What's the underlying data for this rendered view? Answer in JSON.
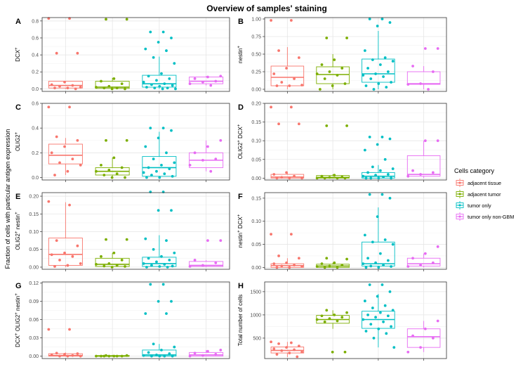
{
  "figure": {
    "title": "Overview of samples' staining",
    "shared_ylabel": "Fraction of cells with particular antigen expression",
    "legend_title": "Cells category",
    "legend_position": "right"
  },
  "chart_data": [
    {
      "id": "A",
      "type": "box",
      "ylabel_main": "DCX",
      "ylabel_sup": "+",
      "ylim": [
        -0.03,
        0.84
      ],
      "ticks": [
        0.0,
        0.2,
        0.4,
        0.6,
        0.8
      ],
      "tick_decimals": 1,
      "categories": [
        "adjacent tissue",
        "adjacent tumor",
        "tumor only",
        "tumor only non-GBM"
      ],
      "boxes": [
        {
          "q1": 0.01,
          "median": 0.04,
          "q3": 0.09,
          "wlow": 0.0,
          "whigh": 0.09
        },
        {
          "q1": 0.005,
          "median": 0.02,
          "q3": 0.09,
          "wlow": 0.0,
          "whigh": 0.13
        },
        {
          "q1": 0.02,
          "median": 0.06,
          "q3": 0.16,
          "wlow": 0.0,
          "whigh": 0.38
        },
        {
          "q1": 0.06,
          "median": 0.09,
          "q3": 0.14,
          "wlow": 0.04,
          "whigh": 0.15
        }
      ],
      "points": [
        [
          0.83,
          0.83,
          0.42,
          0.42,
          0.08,
          0.05,
          0.04,
          0.03,
          0.02,
          0.01,
          0.01,
          0.0
        ],
        [
          0.82,
          0.82,
          0.12,
          0.09,
          0.06,
          0.03,
          0.02,
          0.01,
          0.01,
          0.0,
          0.0
        ],
        [
          0.67,
          0.67,
          0.6,
          0.55,
          0.47,
          0.45,
          0.37,
          0.3,
          0.18,
          0.15,
          0.12,
          0.1,
          0.08,
          0.06,
          0.05,
          0.04,
          0.03,
          0.02,
          0.01,
          0.01,
          0.0,
          0.0
        ],
        [
          0.15,
          0.14,
          0.12,
          0.09,
          0.08,
          0.06,
          0.04
        ]
      ]
    },
    {
      "id": "B",
      "type": "box",
      "ylabel_main": "nestin",
      "ylabel_sup": "+",
      "ylim": [
        -0.03,
        1.02
      ],
      "ticks": [
        0.0,
        0.25,
        0.5,
        0.75,
        1.0
      ],
      "tick_decimals": 2,
      "categories": [
        "adjacent tissue",
        "adjacent tumor",
        "tumor only",
        "tumor only non-GBM"
      ],
      "boxes": [
        {
          "q1": 0.05,
          "median": 0.17,
          "q3": 0.33,
          "wlow": 0.0,
          "whigh": 0.6
        },
        {
          "q1": 0.08,
          "median": 0.21,
          "q3": 0.32,
          "wlow": 0.0,
          "whigh": 0.5
        },
        {
          "q1": 0.1,
          "median": 0.22,
          "q3": 0.43,
          "wlow": 0.0,
          "whigh": 0.83
        },
        {
          "q1": 0.07,
          "median": 0.08,
          "q3": 0.25,
          "wlow": 0.0,
          "whigh": 0.33
        }
      ],
      "points": [
        [
          0.98,
          0.98,
          0.55,
          0.45,
          0.3,
          0.22,
          0.15,
          0.1,
          0.06,
          0.05,
          0.05
        ],
        [
          0.73,
          0.73,
          0.42,
          0.35,
          0.3,
          0.25,
          0.22,
          0.2,
          0.15,
          0.08,
          0.05,
          0.0
        ],
        [
          1.0,
          1.0,
          0.95,
          0.9,
          0.55,
          0.45,
          0.42,
          0.4,
          0.35,
          0.3,
          0.25,
          0.22,
          0.2,
          0.18,
          0.15,
          0.1,
          0.08,
          0.05,
          0.03,
          0.0
        ],
        [
          0.58,
          0.58,
          0.33,
          0.25,
          0.08,
          0.07,
          0.0
        ]
      ]
    },
    {
      "id": "C",
      "type": "box",
      "ylabel_main": "OLIG2",
      "ylabel_sup": "+",
      "ylim": [
        -0.02,
        0.6
      ],
      "ticks": [
        0.0,
        0.2,
        0.4,
        0.6
      ],
      "tick_decimals": 1,
      "categories": [
        "adjacent tissue",
        "adjacent tumor",
        "tumor only",
        "tumor only non-GBM"
      ],
      "boxes": [
        {
          "q1": 0.11,
          "median": 0.18,
          "q3": 0.27,
          "wlow": 0.02,
          "whigh": 0.32
        },
        {
          "q1": 0.02,
          "median": 0.05,
          "q3": 0.08,
          "wlow": 0.0,
          "whigh": 0.16
        },
        {
          "q1": 0.01,
          "median": 0.08,
          "q3": 0.17,
          "wlow": 0.0,
          "whigh": 0.37
        },
        {
          "q1": 0.08,
          "median": 0.14,
          "q3": 0.2,
          "wlow": 0.05,
          "whigh": 0.3
        }
      ],
      "points": [
        [
          0.57,
          0.57,
          0.33,
          0.3,
          0.25,
          0.2,
          0.15,
          0.12,
          0.1,
          0.05,
          0.02
        ],
        [
          0.3,
          0.3,
          0.16,
          0.1,
          0.08,
          0.06,
          0.05,
          0.03,
          0.02,
          0.0,
          0.0
        ],
        [
          0.4,
          0.4,
          0.38,
          0.32,
          0.25,
          0.2,
          0.15,
          0.12,
          0.1,
          0.08,
          0.07,
          0.05,
          0.04,
          0.03,
          0.02,
          0.01,
          0.0,
          0.0
        ],
        [
          0.3,
          0.25,
          0.2,
          0.15,
          0.14,
          0.1,
          0.05
        ]
      ]
    },
    {
      "id": "D",
      "type": "box",
      "ylabel_main": "OLIG2",
      "ylabel_sup": "+",
      "ylabel_main2": " DCX",
      "ylabel_sup2": "+",
      "ylim": [
        -0.005,
        0.2
      ],
      "ticks": [
        0.0,
        0.05,
        0.1,
        0.15,
        0.2
      ],
      "tick_decimals": 2,
      "categories": [
        "adjacent tissue",
        "adjacent tumor",
        "tumor only",
        "tumor only non-GBM"
      ],
      "boxes": [
        {
          "q1": 0.0,
          "median": 0.003,
          "q3": 0.01,
          "wlow": 0.0,
          "whigh": 0.015
        },
        {
          "q1": 0.0,
          "median": 0.002,
          "q3": 0.007,
          "wlow": 0.0,
          "whigh": 0.01
        },
        {
          "q1": 0.0,
          "median": 0.005,
          "q3": 0.015,
          "wlow": 0.0,
          "whigh": 0.035
        },
        {
          "q1": 0.005,
          "median": 0.01,
          "q3": 0.06,
          "wlow": 0.0,
          "whigh": 0.1
        }
      ],
      "points": [
        [
          0.19,
          0.19,
          0.145,
          0.145,
          0.015,
          0.01,
          0.005,
          0.002,
          0.0,
          0.0,
          0.0
        ],
        [
          0.14,
          0.14,
          0.008,
          0.005,
          0.003,
          0.002,
          0.0,
          0.0,
          0.0,
          0.0
        ],
        [
          0.11,
          0.11,
          0.105,
          0.09,
          0.075,
          0.05,
          0.03,
          0.025,
          0.02,
          0.015,
          0.01,
          0.008,
          0.005,
          0.003,
          0.0,
          0.0,
          0.0,
          0.0
        ],
        [
          0.1,
          0.1,
          0.02,
          0.015,
          0.01,
          0.005
        ]
      ]
    },
    {
      "id": "E",
      "type": "box",
      "ylabel_main": "OLIG2",
      "ylabel_sup": "+",
      "ylabel_main2": " nestin",
      "ylabel_sup2": "+",
      "ylim": [
        -0.006,
        0.21
      ],
      "ticks": [
        0.0,
        0.05,
        0.1,
        0.15,
        0.2
      ],
      "tick_decimals": 2,
      "categories": [
        "adjacent tissue",
        "adjacent tumor",
        "tumor only",
        "tumor only non-GBM"
      ],
      "boxes": [
        {
          "q1": 0.005,
          "median": 0.036,
          "q3": 0.082,
          "wlow": 0.0,
          "whigh": 0.183
        },
        {
          "q1": 0.002,
          "median": 0.008,
          "q3": 0.025,
          "wlow": 0.0,
          "whigh": 0.04
        },
        {
          "q1": 0.002,
          "median": 0.01,
          "q3": 0.028,
          "wlow": 0.0,
          "whigh": 0.09
        },
        {
          "q1": 0.002,
          "median": 0.005,
          "q3": 0.016,
          "wlow": 0.0,
          "whigh": 0.02
        }
      ],
      "points": [
        [
          0.185,
          0.175,
          0.075,
          0.06,
          0.04,
          0.035,
          0.03,
          0.02,
          0.01,
          0.005,
          0.002
        ],
        [
          0.078,
          0.078,
          0.04,
          0.03,
          0.02,
          0.01,
          0.008,
          0.005,
          0.003,
          0.002,
          0.0
        ],
        [
          0.212,
          0.212,
          0.16,
          0.16,
          0.08,
          0.075,
          0.05,
          0.04,
          0.03,
          0.025,
          0.02,
          0.015,
          0.01,
          0.008,
          0.005,
          0.003,
          0.002,
          0.0,
          0.0
        ],
        [
          0.075,
          0.075,
          0.02,
          0.012,
          0.005,
          0.002
        ]
      ]
    },
    {
      "id": "F",
      "type": "box",
      "ylabel_main": "nestin",
      "ylabel_sup": "+",
      "ylabel_main2": " DCX",
      "ylabel_sup2": "+",
      "ylim": [
        -0.004,
        0.162
      ],
      "ticks": [
        0.0,
        0.05,
        0.1,
        0.15
      ],
      "tick_decimals": 2,
      "categories": [
        "adjacent tissue",
        "adjacent tumor",
        "tumor only",
        "tumor only non-GBM"
      ],
      "boxes": [
        {
          "q1": 0.0,
          "median": 0.004,
          "q3": 0.008,
          "wlow": 0.0,
          "whigh": 0.02
        },
        {
          "q1": 0.0,
          "median": 0.003,
          "q3": 0.007,
          "wlow": 0.0,
          "whigh": 0.01
        },
        {
          "q1": 0.003,
          "median": 0.008,
          "q3": 0.055,
          "wlow": 0.0,
          "whigh": 0.13
        },
        {
          "q1": 0.003,
          "median": 0.008,
          "q3": 0.02,
          "wlow": 0.0,
          "whigh": 0.03
        }
      ],
      "points": [
        [
          0.072,
          0.072,
          0.025,
          0.02,
          0.01,
          0.008,
          0.005,
          0.003,
          0.002,
          0.0,
          0.0
        ],
        [
          0.02,
          0.018,
          0.01,
          0.008,
          0.005,
          0.003,
          0.002,
          0.0,
          0.0
        ],
        [
          0.158,
          0.158,
          0.15,
          0.11,
          0.07,
          0.06,
          0.055,
          0.05,
          0.03,
          0.02,
          0.015,
          0.01,
          0.008,
          0.005,
          0.003,
          0.002,
          0.0,
          0.0
        ],
        [
          0.045,
          0.03,
          0.02,
          0.01,
          0.005,
          0.002
        ]
      ]
    },
    {
      "id": "G",
      "type": "box",
      "ylabel_main": "DCX",
      "ylabel_sup": "+",
      "ylabel_main2": " OLIG2",
      "ylabel_sup2": "+",
      "ylabel_main3": " nestin",
      "ylabel_sup3": "+",
      "ylim": [
        -0.004,
        0.122
      ],
      "ticks": [
        0.0,
        0.03,
        0.06,
        0.09,
        0.12
      ],
      "tick_decimals": 2,
      "categories": [
        "adjacent tissue",
        "adjacent tumor",
        "tumor only",
        "tumor only non-GBM"
      ],
      "boxes": [
        {
          "q1": 0.0,
          "median": 0.001,
          "q3": 0.004,
          "wlow": 0.0,
          "whigh": 0.006
        },
        {
          "q1": 0.0,
          "median": 0.0,
          "q3": 0.001,
          "wlow": 0.0,
          "whigh": 0.002
        },
        {
          "q1": 0.0,
          "median": 0.002,
          "q3": 0.01,
          "wlow": 0.0,
          "whigh": 0.02
        },
        {
          "q1": 0.0,
          "median": 0.002,
          "q3": 0.006,
          "wlow": 0.0,
          "whigh": 0.01
        }
      ],
      "points": [
        [
          0.044,
          0.044,
          0.005,
          0.004,
          0.003,
          0.002,
          0.001,
          0.0,
          0.0,
          0.0
        ],
        [
          0.001,
          0.001,
          0.0,
          0.0,
          0.0,
          0.0,
          0.0,
          0.0,
          0.0
        ],
        [
          0.118,
          0.118,
          0.09,
          0.09,
          0.07,
          0.07,
          0.02,
          0.015,
          0.01,
          0.006,
          0.004,
          0.002,
          0.001,
          0.0,
          0.0,
          0.0,
          0.0
        ],
        [
          0.01,
          0.008,
          0.005,
          0.003,
          0.001,
          0.0
        ]
      ]
    },
    {
      "id": "H",
      "type": "box",
      "ylabel_main": "Total number of cells",
      "ylabel_sup": "",
      "ylim": [
        60,
        1710
      ],
      "ticks": [
        500,
        1000,
        1500
      ],
      "tick_decimals": 0,
      "categories": [
        "adjacent tissue",
        "adjacent tumor",
        "tumor only",
        "tumor only non-GBM"
      ],
      "boxes": [
        {
          "q1": 180,
          "median": 235,
          "q3": 310,
          "wlow": 90,
          "whigh": 420
        },
        {
          "q1": 820,
          "median": 900,
          "q3": 990,
          "wlow": 700,
          "whigh": 1100
        },
        {
          "q1": 710,
          "median": 900,
          "q3": 1080,
          "wlow": 300,
          "whigh": 1450
        },
        {
          "q1": 300,
          "median": 530,
          "q3": 700,
          "wlow": 200,
          "whigh": 870
        }
      ],
      "points": [
        [
          420,
          400,
          380,
          330,
          300,
          270,
          250,
          230,
          200,
          180,
          150,
          100
        ],
        [
          1100,
          1050,
          1000,
          980,
          950,
          920,
          900,
          870,
          850,
          200,
          200
        ],
        [
          1650,
          1650,
          1500,
          1400,
          1300,
          1200,
          1150,
          1100,
          1050,
          1000,
          980,
          950,
          900,
          850,
          800,
          750,
          700,
          650,
          600,
          500,
          300
        ],
        [
          870,
          700,
          550,
          500,
          300,
          200
        ]
      ]
    }
  ],
  "legend": {
    "items": [
      {
        "label": "adjacent tissue",
        "color": "#F8766D"
      },
      {
        "label": "adjacent tumor",
        "color": "#7CAE00"
      },
      {
        "label": "tumor only",
        "color": "#00BFC4"
      },
      {
        "label": "tumor only non-GBM",
        "color": "#E76BF3"
      }
    ]
  }
}
